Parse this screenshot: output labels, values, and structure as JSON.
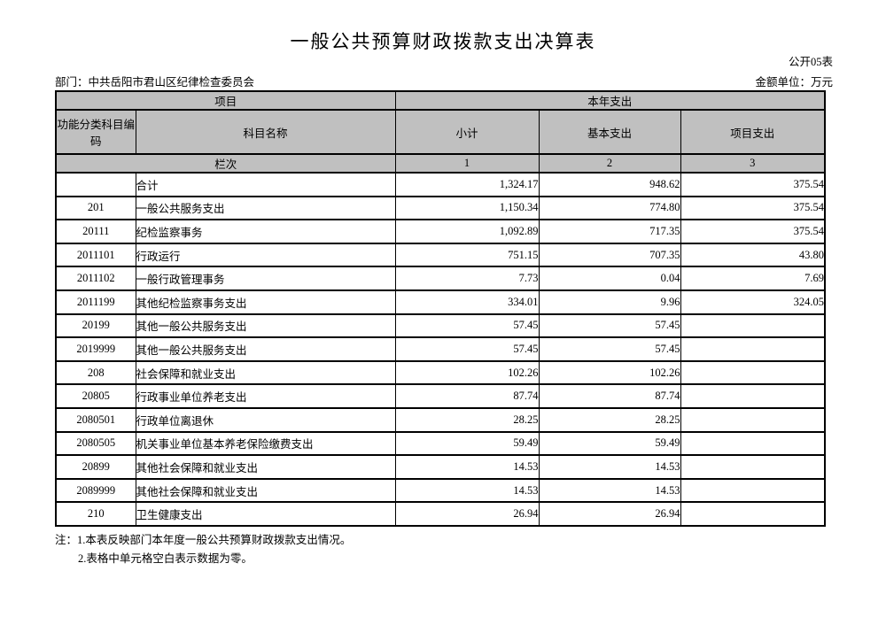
{
  "page": {
    "title": "一般公共预算财政拨款支出决算表",
    "table_code": "公开05表",
    "department": "部门：中共岳阳市君山区纪律检查委员会",
    "unit": "金额单位：万元"
  },
  "table": {
    "header": {
      "project_group": "项目",
      "current_year_group": "本年支出",
      "code": "功能分类科目编码",
      "name": "科目名称",
      "subtotal": "小计",
      "basic": "基本支出",
      "project": "项目支出",
      "row_label": "栏次",
      "col_1": "1",
      "col_2": "2",
      "col_3": "3"
    },
    "rows": [
      {
        "code": "",
        "name": "合计",
        "subtotal": "1,324.17",
        "basic": "948.62",
        "project": "375.54"
      },
      {
        "code": "201",
        "name": "一般公共服务支出",
        "subtotal": "1,150.34",
        "basic": "774.80",
        "project": "375.54"
      },
      {
        "code": "20111",
        "name": "纪检监察事务",
        "subtotal": "1,092.89",
        "basic": "717.35",
        "project": "375.54"
      },
      {
        "code": "2011101",
        "name": "行政运行",
        "subtotal": "751.15",
        "basic": "707.35",
        "project": "43.80"
      },
      {
        "code": "2011102",
        "name": "一般行政管理事务",
        "subtotal": "7.73",
        "basic": "0.04",
        "project": "7.69"
      },
      {
        "code": "2011199",
        "name": "其他纪检监察事务支出",
        "subtotal": "334.01",
        "basic": "9.96",
        "project": "324.05"
      },
      {
        "code": "20199",
        "name": "其他一般公共服务支出",
        "subtotal": "57.45",
        "basic": "57.45",
        "project": ""
      },
      {
        "code": "2019999",
        "name": "其他一般公共服务支出",
        "subtotal": "57.45",
        "basic": "57.45",
        "project": ""
      },
      {
        "code": "208",
        "name": "社会保障和就业支出",
        "subtotal": "102.26",
        "basic": "102.26",
        "project": ""
      },
      {
        "code": "20805",
        "name": "行政事业单位养老支出",
        "subtotal": "87.74",
        "basic": "87.74",
        "project": ""
      },
      {
        "code": "2080501",
        "name": "行政单位离退休",
        "subtotal": "28.25",
        "basic": "28.25",
        "project": ""
      },
      {
        "code": "2080505",
        "name": "机关事业单位基本养老保险缴费支出",
        "subtotal": "59.49",
        "basic": "59.49",
        "project": ""
      },
      {
        "code": "20899",
        "name": "其他社会保障和就业支出",
        "subtotal": "14.53",
        "basic": "14.53",
        "project": ""
      },
      {
        "code": "2089999",
        "name": "其他社会保障和就业支出",
        "subtotal": "14.53",
        "basic": "14.53",
        "project": ""
      },
      {
        "code": "210",
        "name": "卫生健康支出",
        "subtotal": "26.94",
        "basic": "26.94",
        "project": ""
      }
    ]
  },
  "notes": {
    "line1": "注：1.本表反映部门本年度一般公共预算财政拨款支出情况。",
    "line2": "2.表格中单元格空白表示数据为零。"
  },
  "colors": {
    "header_bg": "#c0c0c0",
    "border": "#000000",
    "page_bg": "#ffffff"
  }
}
